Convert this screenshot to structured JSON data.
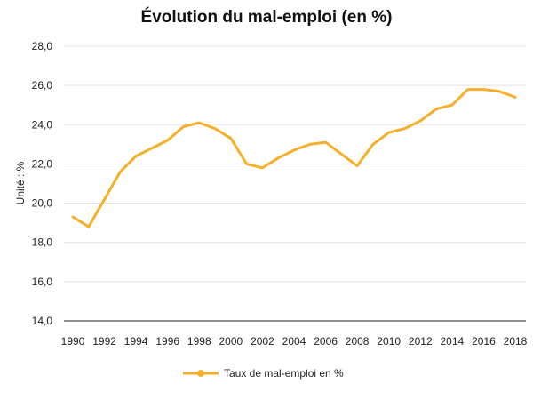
{
  "chart_data": {
    "type": "line",
    "title": "Évolution du mal-emploi (en %)",
    "xlabel": "",
    "ylabel": "Unité : %",
    "ylim": [
      14,
      28
    ],
    "yticks": [
      "14,0",
      "16,0",
      "18,0",
      "20,0",
      "22,0",
      "24,0",
      "26,0",
      "28,0"
    ],
    "xticks": [
      "1990",
      "1992",
      "1994",
      "1996",
      "1998",
      "2000",
      "2002",
      "2004",
      "2006",
      "2008",
      "2010",
      "2012",
      "2014",
      "2016",
      "2018"
    ],
    "x": [
      1990,
      1991,
      1992,
      1993,
      1994,
      1995,
      1996,
      1997,
      1998,
      1999,
      2000,
      2001,
      2002,
      2003,
      2004,
      2005,
      2006,
      2007,
      2008,
      2009,
      2010,
      2011,
      2012,
      2013,
      2014,
      2015,
      2016,
      2017,
      2018
    ],
    "series": [
      {
        "name": "Taux de mal-emploi en %",
        "color": "#F5AF2A",
        "values": [
          19.3,
          18.8,
          20.2,
          21.6,
          22.4,
          22.8,
          23.2,
          23.9,
          24.1,
          23.8,
          23.3,
          22.0,
          21.8,
          22.3,
          22.7,
          23.0,
          23.1,
          22.5,
          21.9,
          23.0,
          23.6,
          23.8,
          24.2,
          24.8,
          25.0,
          25.8,
          25.8,
          25.7,
          25.4
        ]
      }
    ],
    "grid": true,
    "legend": "bottom"
  }
}
